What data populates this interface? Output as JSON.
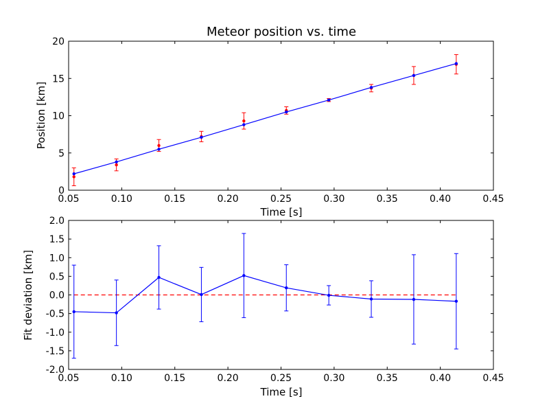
{
  "chart_data": [
    {
      "type": "scatter",
      "title": "Meteor position vs. time",
      "xlabel": "Time [s]",
      "ylabel": "Position [km]",
      "xlim": [
        0.05,
        0.45
      ],
      "ylim": [
        0,
        20
      ],
      "xticks": [
        "0.05",
        "0.10",
        "0.15",
        "0.20",
        "0.25",
        "0.30",
        "0.35",
        "0.40",
        "0.45"
      ],
      "yticks": [
        "0",
        "5",
        "10",
        "15",
        "20"
      ],
      "x": [
        0.055,
        0.095,
        0.135,
        0.175,
        0.215,
        0.255,
        0.295,
        0.335,
        0.375,
        0.415
      ],
      "series": [
        {
          "kind": "measured",
          "color": "#ff0000",
          "y": [
            1.8,
            3.4,
            6.0,
            7.2,
            9.3,
            10.7,
            12.1,
            13.7,
            15.4,
            16.9
          ],
          "yerr": [
            1.2,
            0.8,
            0.8,
            0.7,
            1.1,
            0.5,
            0.2,
            0.5,
            1.2,
            1.3
          ]
        },
        {
          "kind": "fit",
          "color": "#0000ff",
          "y": [
            2.2,
            3.8,
            5.5,
            7.1,
            8.8,
            10.5,
            12.1,
            13.8,
            15.4,
            17.0
          ]
        }
      ]
    },
    {
      "type": "line",
      "xlabel": "Time [s]",
      "ylabel": "Fit deviation [km]",
      "xlim": [
        0.05,
        0.45
      ],
      "ylim": [
        -2.0,
        2.0
      ],
      "xticks": [
        "0.05",
        "0.10",
        "0.15",
        "0.20",
        "0.25",
        "0.30",
        "0.35",
        "0.40",
        "0.45"
      ],
      "yticks": [
        "-2.0",
        "-1.5",
        "-1.0",
        "-0.5",
        "0.0",
        "0.5",
        "1.0",
        "1.5",
        "2.0"
      ],
      "x": [
        0.055,
        0.095,
        0.135,
        0.175,
        0.215,
        0.255,
        0.295,
        0.335,
        0.375,
        0.415
      ],
      "series": [
        {
          "kind": "deviation",
          "color": "#0000ff",
          "y": [
            -0.45,
            -0.48,
            0.47,
            0.01,
            0.52,
            0.19,
            -0.01,
            -0.11,
            -0.12,
            -0.17
          ],
          "yerr": [
            1.25,
            0.88,
            0.85,
            0.73,
            1.13,
            0.62,
            0.26,
            0.49,
            1.2,
            1.28
          ]
        }
      ],
      "reference_line": {
        "y": 0,
        "color": "#ff0000",
        "style": "dashed"
      }
    }
  ]
}
